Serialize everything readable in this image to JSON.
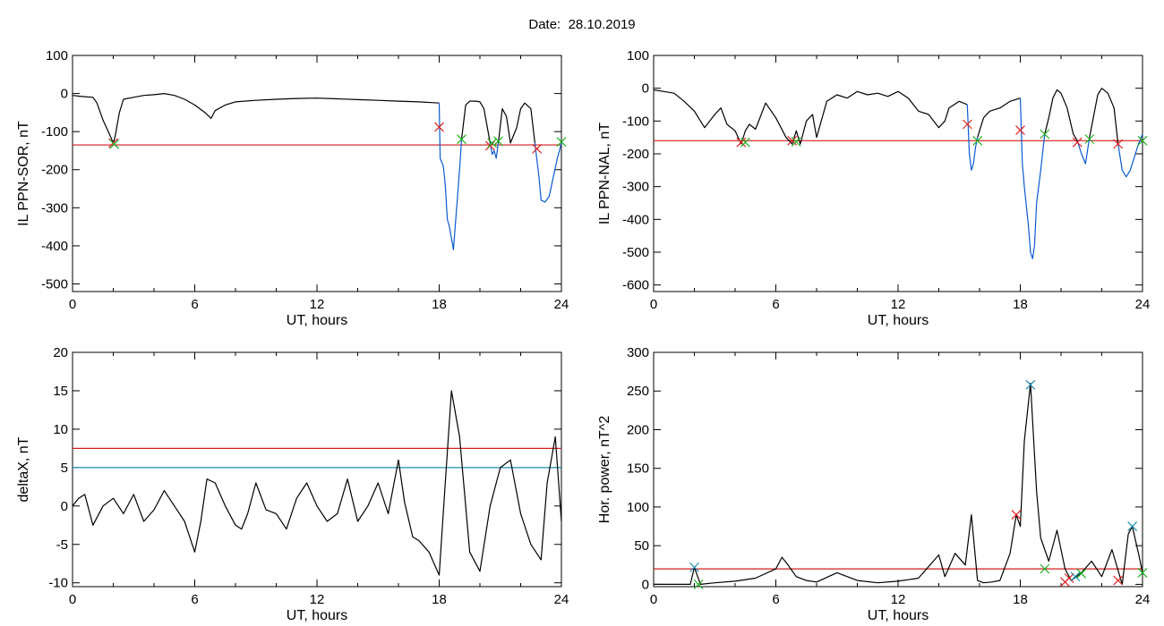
{
  "header": {
    "date_label": "Date:",
    "date_value": "28.10.2019"
  },
  "colors": {
    "trace": "#000000",
    "active": "#0a5ad2",
    "threshold_red": "#d21e1e",
    "threshold_blue": "#1e8cb4",
    "marker_red": "#e02020",
    "marker_green": "#20b020",
    "marker_blue": "#1e8cb4"
  },
  "chart_data": [
    {
      "type": "line",
      "ylabel": "IL PPN-SOR, nT",
      "xlabel": "UT, hours",
      "xlim": [
        0,
        24
      ],
      "ylim": [
        -520,
        100
      ],
      "xticks": [
        0,
        6,
        12,
        18,
        24
      ],
      "yticks": [
        -500,
        -400,
        -300,
        -200,
        -100,
        0,
        100
      ],
      "grid": false,
      "series": [
        {
          "style": "trace",
          "x": [
            0,
            0.5,
            1.0,
            1.2,
            1.5,
            1.8,
            2.0,
            2.1,
            2.3,
            2.5,
            3.0,
            3.5,
            4.0,
            4.5,
            5.0,
            5.5,
            6.0,
            6.5,
            6.8,
            7.0,
            7.5,
            8,
            9,
            10,
            11,
            12,
            13,
            14,
            15,
            16,
            17,
            18.0
          ],
          "y": [
            -5,
            -8,
            -10,
            -25,
            -70,
            -105,
            -130,
            -110,
            -50,
            -15,
            -10,
            -5,
            -3,
            0,
            -5,
            -15,
            -30,
            -50,
            -65,
            -45,
            -30,
            -22,
            -18,
            -15,
            -13,
            -12,
            -14,
            -16,
            -18,
            -20,
            -22,
            -25
          ]
        },
        {
          "style": "active",
          "x": [
            18.0,
            18.05,
            18.2,
            18.3,
            18.4,
            18.5,
            18.6,
            18.7,
            18.9,
            19.0,
            19.1
          ],
          "y": [
            -25,
            -170,
            -190,
            -240,
            -330,
            -350,
            -380,
            -410,
            -270,
            -200,
            -120
          ]
        },
        {
          "style": "trace",
          "x": [
            19.1,
            19.3,
            19.5,
            19.8,
            20.0,
            20.2,
            20.5
          ],
          "y": [
            -120,
            -30,
            -20,
            -20,
            -22,
            -40,
            -130
          ]
        },
        {
          "style": "active",
          "x": [
            20.5,
            20.6,
            20.7,
            20.8,
            20.9
          ],
          "y": [
            -130,
            -160,
            -150,
            -170,
            -130
          ]
        },
        {
          "style": "trace",
          "x": [
            20.9,
            21.1,
            21.3,
            21.5,
            21.8,
            22.0,
            22.2,
            22.5,
            22.7
          ],
          "y": [
            -130,
            -40,
            -60,
            -130,
            -90,
            -40,
            -25,
            -40,
            -130
          ]
        },
        {
          "style": "active",
          "x": [
            22.7,
            22.9,
            23.0,
            23.2,
            23.4,
            23.6,
            23.8,
            24
          ],
          "y": [
            -130,
            -220,
            -280,
            -285,
            -270,
            -220,
            -170,
            -130
          ]
        }
      ],
      "thresholds": [
        {
          "y": -135,
          "color": "red"
        }
      ],
      "markers": [
        {
          "x": 2.0,
          "y": -130,
          "color": "red"
        },
        {
          "x": 2.05,
          "y": -133,
          "color": "green"
        },
        {
          "x": 18.0,
          "y": -88,
          "color": "red"
        },
        {
          "x": 19.1,
          "y": -120,
          "color": "green"
        },
        {
          "x": 20.5,
          "y": -137,
          "color": "red"
        },
        {
          "x": 20.6,
          "y": -130,
          "color": "green"
        },
        {
          "x": 20.9,
          "y": -125,
          "color": "green"
        },
        {
          "x": 22.8,
          "y": -145,
          "color": "red"
        },
        {
          "x": 24.0,
          "y": -127,
          "color": "green"
        }
      ]
    },
    {
      "type": "line",
      "ylabel": "IL PPN-NAL, nT",
      "xlabel": "UT, hours",
      "xlim": [
        0,
        24
      ],
      "ylim": [
        -620,
        100
      ],
      "xticks": [
        0,
        6,
        12,
        18,
        24
      ],
      "yticks": [
        -600,
        -500,
        -400,
        -300,
        -200,
        -100,
        0,
        100
      ],
      "grid": false,
      "series": [
        {
          "style": "trace",
          "x": [
            0,
            0.5,
            1.0,
            1.5,
            2.0,
            2.5,
            3.0,
            3.3,
            3.6,
            4.0,
            4.3,
            4.5,
            4.7,
            5.0,
            5.5,
            6.0,
            6.5,
            6.8,
            7.0,
            7.2,
            7.5,
            7.8,
            8.0,
            8.5,
            9,
            9.5,
            10,
            10.5,
            11,
            11.5,
            12,
            12.5,
            13,
            13.5,
            14.0,
            14.3,
            14.5,
            15,
            15.4
          ],
          "y": [
            -5,
            -10,
            -15,
            -40,
            -70,
            -120,
            -80,
            -60,
            -110,
            -130,
            -170,
            -130,
            -110,
            -125,
            -45,
            -90,
            -150,
            -170,
            -130,
            -170,
            -100,
            -80,
            -150,
            -40,
            -20,
            -30,
            -10,
            -20,
            -15,
            -25,
            -10,
            -30,
            -70,
            -80,
            -120,
            -100,
            -60,
            -40,
            -50
          ]
        },
        {
          "style": "active",
          "x": [
            15.4,
            15.5,
            15.6,
            15.7,
            15.8,
            15.9
          ],
          "y": [
            -50,
            -200,
            -250,
            -230,
            -180,
            -150
          ]
        },
        {
          "style": "trace",
          "x": [
            15.9,
            16.2,
            16.5,
            17.0,
            17.5,
            18.0
          ],
          "y": [
            -150,
            -90,
            -70,
            -60,
            -40,
            -30
          ]
        },
        {
          "style": "active",
          "x": [
            18.0,
            18.1,
            18.2,
            18.4,
            18.5,
            18.6,
            18.7,
            18.8,
            19.0,
            19.2
          ],
          "y": [
            -30,
            -230,
            -300,
            -420,
            -500,
            -520,
            -480,
            -350,
            -250,
            -140
          ]
        },
        {
          "style": "trace",
          "x": [
            19.2,
            19.4,
            19.6,
            19.8,
            20.0,
            20.3,
            20.6,
            20.8
          ],
          "y": [
            -140,
            -90,
            -30,
            -5,
            -15,
            -60,
            -140,
            -160
          ]
        },
        {
          "style": "active",
          "x": [
            20.8,
            21.0,
            21.2,
            21.4
          ],
          "y": [
            -160,
            -200,
            -230,
            -150
          ]
        },
        {
          "style": "trace",
          "x": [
            21.4,
            21.8,
            22.0,
            22.3,
            22.6,
            22.8
          ],
          "y": [
            -150,
            -20,
            0,
            -15,
            -60,
            -170
          ]
        },
        {
          "style": "active",
          "x": [
            22.8,
            23.0,
            23.2,
            23.4,
            23.6,
            23.8,
            24
          ],
          "y": [
            -170,
            -250,
            -270,
            -250,
            -210,
            -170,
            -140
          ]
        }
      ],
      "thresholds": [
        {
          "y": -160,
          "color": "red"
        }
      ],
      "markers": [
        {
          "x": 4.3,
          "y": -165,
          "color": "red"
        },
        {
          "x": 4.5,
          "y": -165,
          "color": "green"
        },
        {
          "x": 6.8,
          "y": -160,
          "color": "red"
        },
        {
          "x": 7.0,
          "y": -163,
          "color": "green"
        },
        {
          "x": 15.4,
          "y": -110,
          "color": "red"
        },
        {
          "x": 15.9,
          "y": -160,
          "color": "green"
        },
        {
          "x": 18.0,
          "y": -128,
          "color": "red"
        },
        {
          "x": 19.2,
          "y": -140,
          "color": "green"
        },
        {
          "x": 20.8,
          "y": -165,
          "color": "red"
        },
        {
          "x": 21.4,
          "y": -155,
          "color": "green"
        },
        {
          "x": 22.8,
          "y": -170,
          "color": "red"
        },
        {
          "x": 24.0,
          "y": -160,
          "color": "green"
        }
      ]
    },
    {
      "type": "line",
      "ylabel": "deltaX, nT",
      "xlabel": "UT, hours",
      "xlim": [
        0,
        24
      ],
      "ylim": [
        -10.5,
        20
      ],
      "xticks": [
        0,
        6,
        12,
        18,
        24
      ],
      "yticks": [
        -10,
        -5,
        0,
        5,
        10,
        15,
        20
      ],
      "grid": false,
      "series": [
        {
          "style": "trace",
          "x": [
            0,
            0.3,
            0.6,
            1.0,
            1.5,
            2.0,
            2.5,
            3.0,
            3.5,
            4.0,
            4.5,
            5.0,
            5.5,
            6.0,
            6.3,
            6.6,
            7.0,
            7.5,
            8.0,
            8.3,
            8.6,
            9.0,
            9.5,
            10.0,
            10.5,
            11.0,
            11.5,
            12.0,
            12.5,
            13.0,
            13.5,
            14.0,
            14.5,
            15.0,
            15.5,
            16.0,
            16.3,
            16.7,
            17.0,
            17.5,
            18.0,
            18.3,
            18.6,
            19.0,
            19.5,
            20.0,
            20.5,
            21.0,
            21.5,
            22.0,
            22.5,
            23.0,
            23.3,
            23.7,
            24.0
          ],
          "y": [
            0,
            1,
            1.5,
            -2.5,
            0,
            1,
            -1,
            1.5,
            -2,
            -0.5,
            2,
            0,
            -2,
            -6,
            -2,
            3.5,
            3,
            0,
            -2.5,
            -3,
            -1,
            3,
            -0.5,
            -1,
            -3,
            1,
            3,
            0,
            -2,
            -1,
            3.5,
            -2,
            0,
            3,
            -1,
            6,
            0.5,
            -4,
            -4.5,
            -6,
            -9,
            3,
            15,
            9,
            -6,
            -8.5,
            0,
            5,
            6,
            -1,
            -5,
            -7,
            3,
            9,
            -2
          ]
        }
      ],
      "thresholds": [
        {
          "y": 7.5,
          "color": "red"
        },
        {
          "y": 5,
          "color": "blue"
        }
      ],
      "markers": []
    },
    {
      "type": "line",
      "ylabel": "Hor. power, nT^2",
      "xlabel": "UT, hours",
      "xlim": [
        0,
        24
      ],
      "ylim": [
        -3,
        300
      ],
      "xticks": [
        0,
        6,
        12,
        18,
        24
      ],
      "yticks": [
        0,
        50,
        100,
        150,
        200,
        250,
        300
      ],
      "grid": false,
      "series": [
        {
          "style": "trace",
          "x": [
            0,
            1,
            1.8,
            2.0,
            2.3,
            3,
            4,
            5,
            6.0,
            6.3,
            6.6,
            7.0,
            7.5,
            8,
            9,
            10,
            11,
            12,
            13,
            14.0,
            14.3,
            14.8,
            15.3,
            15.6,
            15.9,
            16.2,
            16.6,
            17.0,
            17.5,
            17.8,
            18.0,
            18.2,
            18.5,
            18.8,
            19.0,
            19.4,
            19.8,
            20.2,
            20.5,
            21.0,
            21.5,
            22.0,
            22.5,
            23.0,
            23.3,
            23.5,
            23.8,
            24.0
          ],
          "y": [
            0,
            0,
            0,
            22,
            0,
            2,
            4,
            8,
            20,
            35,
            25,
            10,
            5,
            3,
            15,
            5,
            2,
            4,
            8,
            38,
            10,
            40,
            25,
            90,
            5,
            2,
            3,
            5,
            40,
            90,
            75,
            185,
            260,
            120,
            60,
            30,
            70,
            20,
            5,
            15,
            30,
            10,
            45,
            0,
            65,
            75,
            40,
            15
          ]
        }
      ],
      "thresholds": [
        {
          "y": 20,
          "color": "red"
        }
      ],
      "markers": [
        {
          "x": 2.0,
          "y": 22,
          "color": "blue"
        },
        {
          "x": 2.2,
          "y": 0,
          "color": "green"
        },
        {
          "x": 17.8,
          "y": 90,
          "color": "red"
        },
        {
          "x": 18.5,
          "y": 258,
          "color": "blue"
        },
        {
          "x": 19.2,
          "y": 20,
          "color": "green"
        },
        {
          "x": 20.2,
          "y": 3,
          "color": "red"
        },
        {
          "x": 20.4,
          "y": 8,
          "color": "red"
        },
        {
          "x": 20.7,
          "y": 10,
          "color": "blue"
        },
        {
          "x": 21.0,
          "y": 14,
          "color": "green"
        },
        {
          "x": 22.8,
          "y": 5,
          "color": "red"
        },
        {
          "x": 23.5,
          "y": 75,
          "color": "blue"
        },
        {
          "x": 24.0,
          "y": 15,
          "color": "green"
        }
      ]
    }
  ]
}
